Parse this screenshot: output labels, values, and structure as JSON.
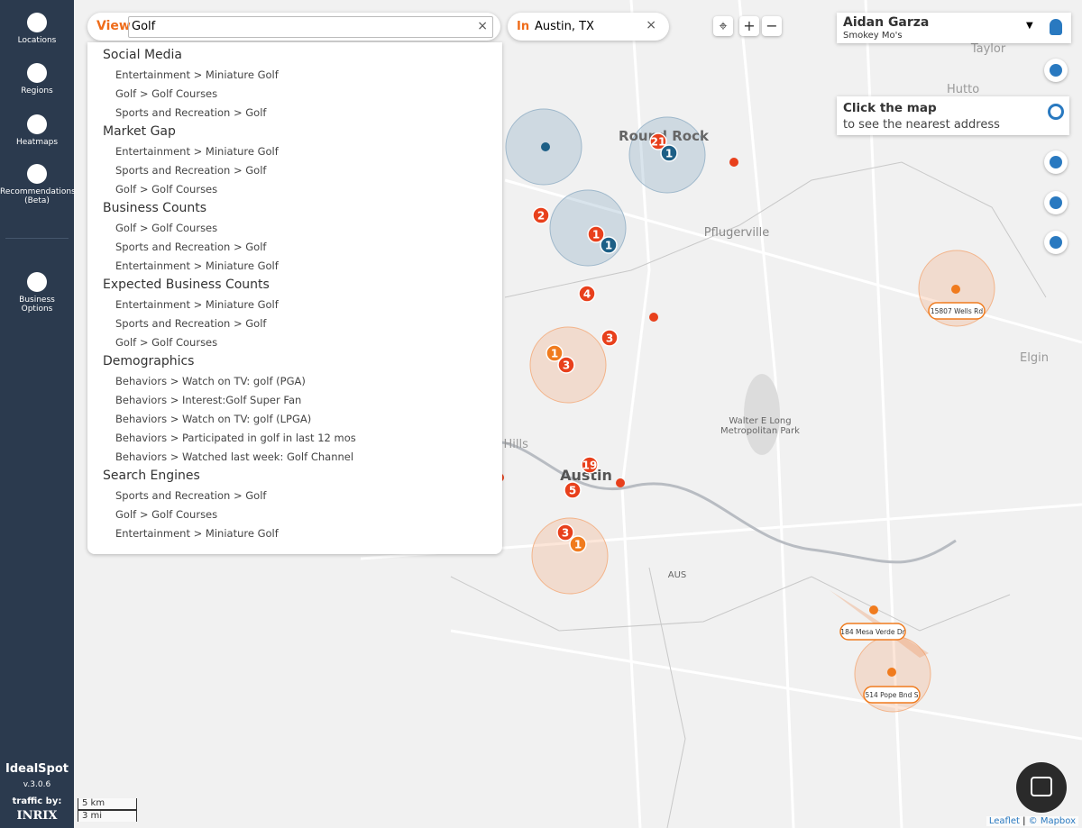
{
  "sidebar": {
    "items": [
      "Locations",
      "Regions",
      "Heatmaps",
      "Recommendations\n(Beta)",
      "Business\nOptions"
    ],
    "brand": "IdealSpot",
    "version": "v.3.0.6",
    "traffic": "traffic by:",
    "inrix": "INRIX"
  },
  "search": {
    "view_label": "View",
    "query": "Golf",
    "in_label": "In",
    "location": "Austin, TX"
  },
  "dropdown": {
    "groups": [
      {
        "title": "Social Media",
        "items": [
          "Entertainment > Miniature Golf",
          "Golf > Golf Courses",
          "Sports and Recreation > Golf"
        ]
      },
      {
        "title": "Market Gap",
        "items": [
          "Entertainment > Miniature Golf",
          "Sports and Recreation > Golf",
          "Golf > Golf Courses"
        ]
      },
      {
        "title": "Business Counts",
        "items": [
          "Golf > Golf Courses",
          "Sports and Recreation > Golf",
          "Entertainment > Miniature Golf"
        ]
      },
      {
        "title": "Expected Business Counts",
        "items": [
          "Entertainment > Miniature Golf",
          "Sports and Recreation > Golf",
          "Golf > Golf Courses"
        ]
      },
      {
        "title": "Demographics",
        "items": [
          "Behaviors > Watch on TV: golf (PGA)",
          "Behaviors > Interest:Golf Super Fan",
          "Behaviors > Watch on TV: golf (LPGA)",
          "Behaviors > Participated in golf in last 12 mos",
          "Behaviors > Watched last week: Golf Channel"
        ]
      },
      {
        "title": "Search Engines",
        "items": [
          "Sports and Recreation > Golf",
          "Golf > Golf Courses",
          "Entertainment > Miniature Golf"
        ]
      }
    ]
  },
  "user": {
    "name": "Aidan Garza",
    "business": "Smokey Mo's"
  },
  "tooltip": {
    "line1": "Click the map",
    "line2": "to see the nearest address"
  },
  "map": {
    "places": [
      "Taylor",
      "Hutto",
      "Round Rock",
      "Pflugerville",
      "Elgin",
      "Walter E Long",
      "Metropolitan Park",
      "Lake Hills",
      "Austin",
      "AUS"
    ],
    "markers": [
      "21",
      "1",
      "2",
      "1",
      "1",
      "4",
      "3",
      "1",
      "3",
      "19",
      "5",
      "3",
      "1"
    ],
    "address_labels": [
      "15807 Wells Rd",
      "184 Mesa Verde Dr",
      "514 Pope Bnd S"
    ]
  },
  "scale": {
    "km": "5 km",
    "mi": "3 mi"
  },
  "attribution": {
    "leaflet": "Leaflet",
    "mapbox": "© Mapbox"
  }
}
